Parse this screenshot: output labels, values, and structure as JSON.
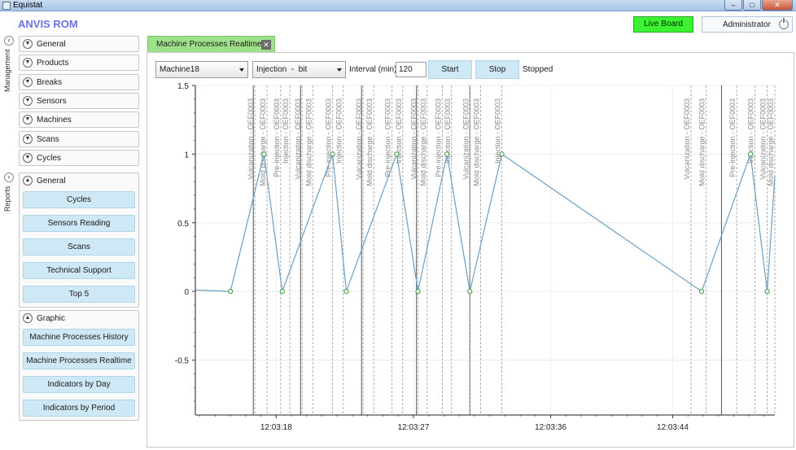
{
  "window": {
    "title": "Equistat",
    "buttons": {
      "minimize": "–",
      "maximize": "□",
      "close": "✕"
    }
  },
  "app": {
    "brand": "ANVIS ROM"
  },
  "header": {
    "live_board": "Live Board",
    "user": "Administrator",
    "icons": {
      "power": "power-icon"
    }
  },
  "colors": {
    "live_board": "#3cf032",
    "tab": "#9fe08a",
    "button": "#cfe8f5",
    "brand": "#6f6fe6",
    "series": "#6b9ec4"
  },
  "rails": {
    "management": "Management",
    "reports": "Reports",
    "collapse_glyph": "‹"
  },
  "management": {
    "items": [
      {
        "label": "General"
      },
      {
        "label": "Products"
      },
      {
        "label": "Breaks"
      },
      {
        "label": "Sensors"
      },
      {
        "label": "Machines"
      },
      {
        "label": "Scans"
      },
      {
        "label": "Cycles"
      }
    ]
  },
  "reports": {
    "general": {
      "label": "General",
      "buttons": [
        "Cycles",
        "Sensors Reading",
        "Scans",
        "Technical Support",
        "Top 5"
      ]
    },
    "graphic": {
      "label": "Graphic",
      "buttons": [
        "Machine Processes History",
        "Machine Processes Realtime",
        "Indicators by Day",
        "Indicators by Period"
      ]
    }
  },
  "tab": {
    "label": "Machine Processes Realtime",
    "close_glyph": "✕"
  },
  "controls": {
    "machine": "Machine18",
    "mode": "Injection  -  bit",
    "interval_label": "Interval (min)",
    "interval_value": "120",
    "start": "Start",
    "stop": "Stop",
    "status": "Stopped"
  },
  "chart_data": {
    "type": "line",
    "title": "",
    "xlabel": "",
    "ylabel": "",
    "ylim": [
      -0.9,
      1.5
    ],
    "y_ticks": [
      "1.5",
      "1",
      "0.5",
      "0",
      "-0.5"
    ],
    "x_ticks": [
      "12:03:18",
      "12:03:27",
      "12:03:36",
      "12:03:44"
    ],
    "x_range_seconds": [
      12.7,
      50.7
    ],
    "series": [
      {
        "name": "",
        "x": [
          12.7,
          15.0,
          17.2,
          18.4,
          21.7,
          22.6,
          25.9,
          27.3,
          29.2,
          30.7,
          32.8,
          45.9,
          49.1,
          50.2,
          50.7
        ],
        "y": [
          0.01,
          0,
          1,
          0,
          1,
          0,
          1,
          0,
          1,
          0,
          1,
          0,
          1,
          0,
          0.84
        ]
      }
    ],
    "event_lines": [
      {
        "t": 16.6,
        "label": "Vulcanization - OEF0003"
      },
      {
        "t": 17.4,
        "label": "Mold discharge - OEF0003"
      },
      {
        "t": 18.3,
        "label": "Pre-injection - OEF0003"
      },
      {
        "t": 18.9,
        "label": "Injection - OEF0003"
      },
      {
        "t": 19.7,
        "label": "Vulcanization - OEF0003"
      },
      {
        "t": 20.4,
        "label": "Mold discharge - OEF0003"
      },
      {
        "t": 21.7,
        "label": "Pre-injection - OEF0003"
      },
      {
        "t": 22.4,
        "label": "Injection - OEF0003"
      },
      {
        "t": 23.7,
        "label": "Vulcanization - OEF0003"
      },
      {
        "t": 24.4,
        "label": "Mold discharge - OEF0003"
      },
      {
        "t": 25.6,
        "label": "Pre-injection - OEF0003"
      },
      {
        "t": 26.3,
        "label": "Injection - OEF0003"
      },
      {
        "t": 27.3,
        "label": "Vulcanization - OEF0003"
      },
      {
        "t": 27.9,
        "label": "Mold discharge - OEF0003"
      },
      {
        "t": 28.9,
        "label": "Pre-injection - OEF0003"
      },
      {
        "t": 29.5,
        "label": "Injection - OEF0003"
      },
      {
        "t": 30.7,
        "label": "Vulcanization - OEF0003"
      },
      {
        "t": 31.4,
        "label": "Mold discharge - OEF0003"
      },
      {
        "t": 32.8,
        "label": "Injection - OEF0003"
      },
      {
        "t": 45.2,
        "label": "Vulcanization - OEF0003"
      },
      {
        "t": 46.2,
        "label": "Mold discharge - OEF0003"
      },
      {
        "t": 48.2,
        "label": "Pre-injection - OEF0003"
      },
      {
        "t": 49.4,
        "label": "Injection - OEF0003"
      },
      {
        "t": 50.2,
        "label": "Vulcanization - OEF0003"
      },
      {
        "t": 50.7,
        "label": "Mold discharge - OEF0003"
      }
    ],
    "cycle_lines": [
      16.5,
      19.6,
      23.6,
      27.2,
      30.7,
      47.2
    ],
    "grid": true,
    "legend": "none"
  }
}
